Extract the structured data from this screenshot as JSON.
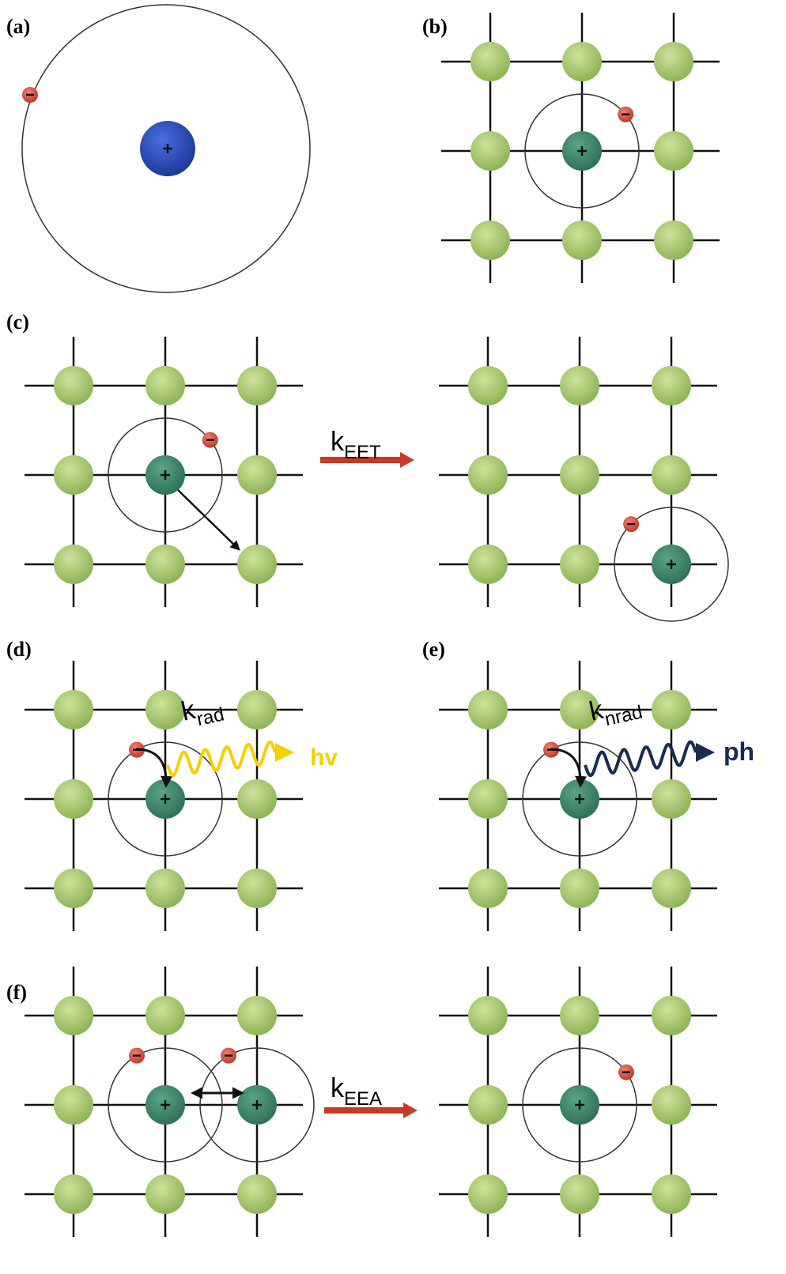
{
  "panels": [
    {
      "label": "(a)"
    },
    {
      "label": "(b)"
    },
    {
      "label": "(c)"
    },
    {
      "label": "(d)"
    },
    {
      "label": "(e)"
    },
    {
      "label": "(f)"
    }
  ],
  "rates": [
    {
      "symbol": "k",
      "subscript": "EET"
    },
    {
      "symbol": "k",
      "subscript": "rad"
    },
    {
      "symbol": "k",
      "subscript": "nrad"
    },
    {
      "symbol": "k",
      "subscript": "EEA"
    }
  ],
  "emissions": {
    "photon": "hv",
    "phonon": "ph"
  }
}
